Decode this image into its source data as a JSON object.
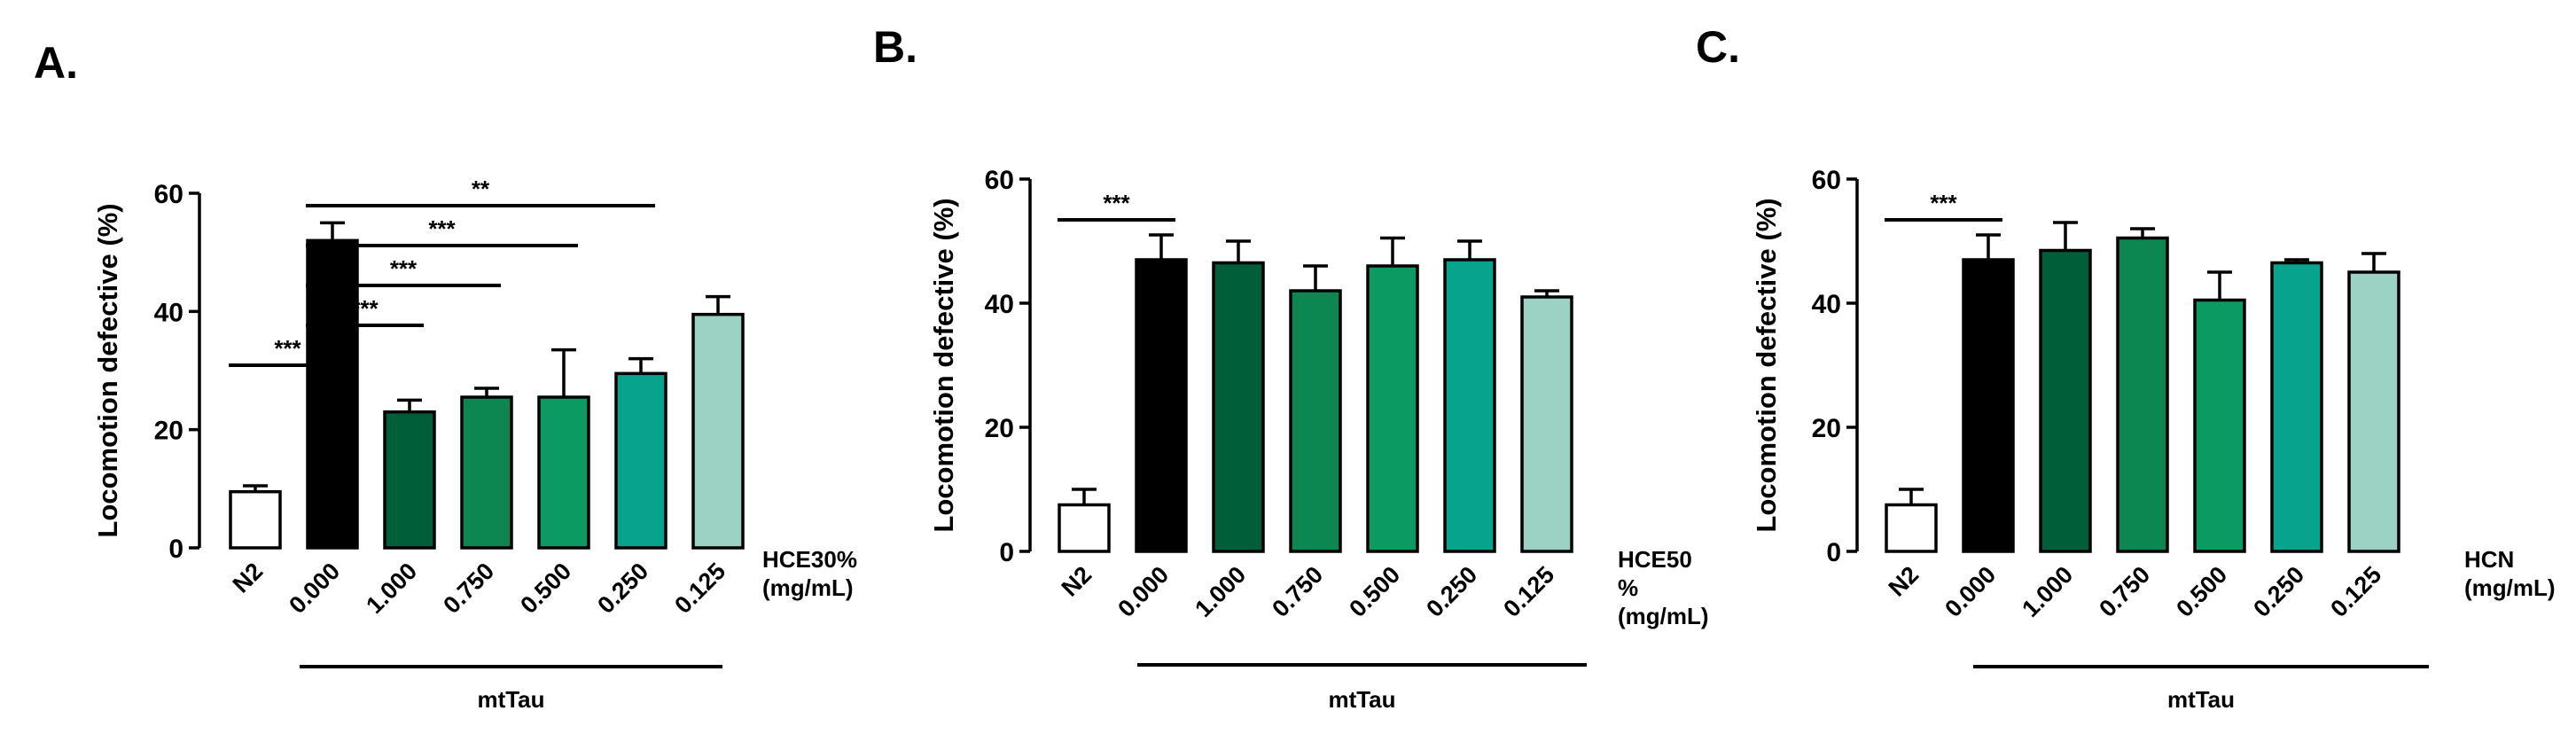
{
  "chart_data": [
    {
      "panel": "A.",
      "type": "bar",
      "ylabel": "Locomotion defective (%)",
      "ylim": [
        0,
        60
      ],
      "yticks": [
        "0",
        "20",
        "40",
        "60"
      ],
      "categories": [
        "N2",
        "0.000",
        "1.000",
        "0.750",
        "0.500",
        "0.250",
        "0.125"
      ],
      "values": [
        9.5,
        52,
        23,
        25.5,
        25.5,
        29.5,
        39.5
      ],
      "errors": [
        1,
        3,
        2,
        1.5,
        8,
        2.5,
        3
      ],
      "colors": [
        "#ffffff",
        "#000000",
        "#005f38",
        "#0c8752",
        "#0a9a62",
        "#06a48d",
        "#9bd2c4"
      ],
      "treatment_lines": [
        "HCE30%",
        "(mg/mL)"
      ],
      "group_label": "mtTau",
      "significance": [
        {
          "from": 0,
          "to": 1,
          "label": "***"
        },
        {
          "from": 1,
          "to": 2,
          "label": "***"
        },
        {
          "from": 1,
          "to": 3,
          "label": "***"
        },
        {
          "from": 1,
          "to": 4,
          "label": "***"
        },
        {
          "from": 1,
          "to": 5,
          "label": "**"
        }
      ]
    },
    {
      "panel": "B.",
      "type": "bar",
      "ylabel": "Locomotion defective (%)",
      "ylim": [
        0,
        60
      ],
      "yticks": [
        "0",
        "20",
        "40",
        "60"
      ],
      "categories": [
        "N2",
        "0.000",
        "1.000",
        "0.750",
        "0.500",
        "0.250",
        "0.125"
      ],
      "values": [
        7.5,
        47,
        46.5,
        42,
        46,
        47,
        41
      ],
      "errors": [
        2.5,
        4,
        3.5,
        4,
        4.5,
        3,
        1
      ],
      "colors": [
        "#ffffff",
        "#000000",
        "#005f38",
        "#0c8752",
        "#0a9a62",
        "#06a48d",
        "#9bd2c4"
      ],
      "treatment_lines": [
        "HCE50",
        "%",
        "(mg/mL)"
      ],
      "group_label": "mtTau",
      "significance": [
        {
          "from": 0,
          "to": 1,
          "label": "***"
        }
      ]
    },
    {
      "panel": "C.",
      "type": "bar",
      "ylabel": "Locomotion defective (%)",
      "ylim": [
        0,
        60
      ],
      "yticks": [
        "0",
        "20",
        "40",
        "60"
      ],
      "categories": [
        "N2",
        "0.000",
        "1.000",
        "0.750",
        "0.500",
        "0.250",
        "0.125"
      ],
      "values": [
        7.5,
        47,
        48.5,
        50.5,
        40.5,
        46.5,
        45
      ],
      "errors": [
        2.5,
        4,
        4.5,
        1.5,
        4.5,
        0.5,
        3
      ],
      "colors": [
        "#ffffff",
        "#000000",
        "#005f38",
        "#0c8752",
        "#0a9a62",
        "#06a48d",
        "#9bd2c4"
      ],
      "treatment_lines": [
        "HCN",
        "(mg/mL)"
      ],
      "group_label": "mtTau",
      "significance": [
        {
          "from": 0,
          "to": 1,
          "label": "***"
        }
      ]
    }
  ]
}
